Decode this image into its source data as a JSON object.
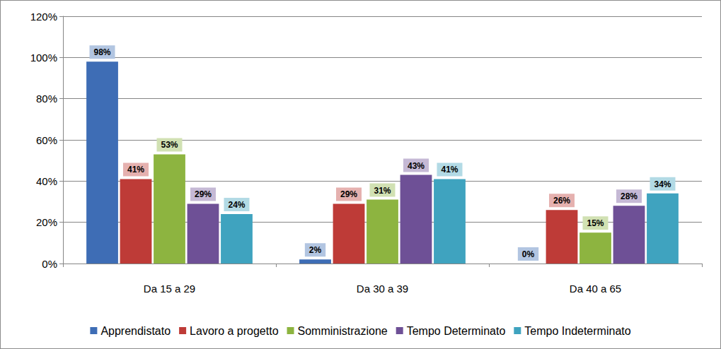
{
  "chart_data": {
    "type": "bar",
    "categories": [
      "Da 15 a 29",
      "Da 30 a 39",
      "Da 40 a 65"
    ],
    "series": [
      {
        "name": "Apprendistato",
        "color": "#3e6db5",
        "values": [
          98,
          2,
          0
        ],
        "value_labels": [
          "98%",
          "2%",
          "0%"
        ]
      },
      {
        "name": "Lavoro a progetto",
        "color": "#be3b37",
        "values": [
          41,
          29,
          26
        ],
        "value_labels": [
          "41%",
          "29%",
          "26%"
        ]
      },
      {
        "name": "Somministrazione",
        "color": "#8db440",
        "values": [
          53,
          31,
          15
        ],
        "value_labels": [
          "53%",
          "31%",
          "15%"
        ]
      },
      {
        "name": "Tempo Determinato",
        "color": "#6e5096",
        "values": [
          29,
          43,
          28
        ],
        "value_labels": [
          "29%",
          "43%",
          "28%"
        ]
      },
      {
        "name": "Tempo Indeterminato",
        "color": "#3fa3bf",
        "values": [
          24,
          41,
          34
        ],
        "value_labels": [
          "24%",
          "41%",
          "34%"
        ]
      }
    ],
    "ylim": [
      0,
      120
    ],
    "yticks": [
      {
        "value": 0,
        "label": "0%"
      },
      {
        "value": 20,
        "label": "20%"
      },
      {
        "value": 40,
        "label": "40%"
      },
      {
        "value": 60,
        "label": "60%"
      },
      {
        "value": 80,
        "label": "80%"
      },
      {
        "value": 100,
        "label": "100%"
      },
      {
        "value": 120,
        "label": "120%"
      }
    ],
    "grid": true,
    "legend": "bottom",
    "data_labels": true
  }
}
